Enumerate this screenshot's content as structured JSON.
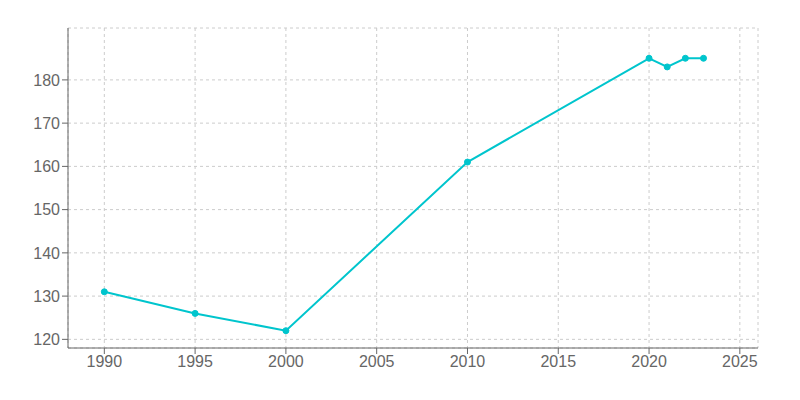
{
  "chart_data": {
    "type": "line",
    "x": [
      1990,
      1995,
      2000,
      2010,
      2020,
      2021,
      2022,
      2023
    ],
    "values": [
      131,
      126,
      122,
      161,
      185,
      183,
      185,
      185
    ],
    "color": "#00C5CD",
    "marker": "circle",
    "xlim": [
      1988,
      2026
    ],
    "ylim": [
      118,
      192
    ],
    "xticks": [
      1990,
      1995,
      2000,
      2005,
      2010,
      2015,
      2020,
      2025
    ],
    "yticks": [
      120,
      130,
      140,
      150,
      160,
      170,
      180
    ],
    "grid": true
  }
}
